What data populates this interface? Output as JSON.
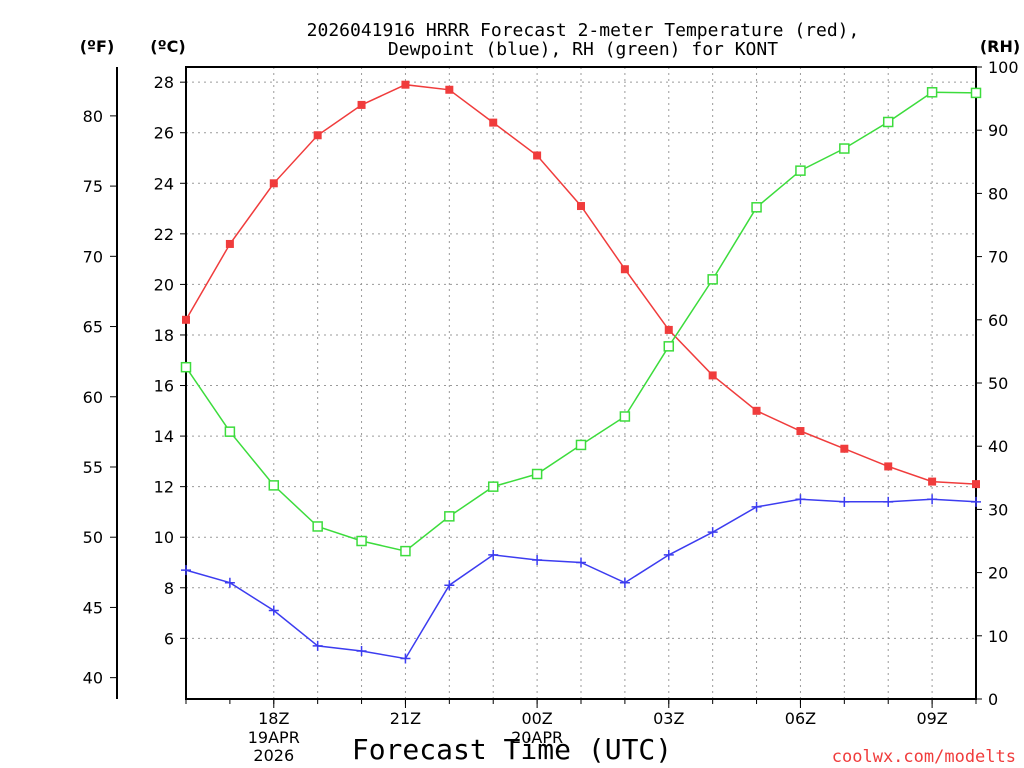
{
  "chart_data": {
    "type": "line",
    "title_line1": "2026041916 HRRR Forecast 2-meter Temperature (red),",
    "title_line2": "Dewpoint (blue), RH (green) for KONT",
    "unit_left_f": "(ºF)",
    "unit_left_c": "(ºC)",
    "unit_right": "(RH)",
    "xlabel": "Forecast Time (UTC)",
    "watermark": "coolwx.com/modelts",
    "x_hours": [
      16,
      17,
      18,
      19,
      20,
      21,
      22,
      23,
      24,
      25,
      26,
      27,
      28,
      29,
      30,
      31,
      32,
      33,
      34
    ],
    "xlim": [
      16,
      34
    ],
    "x_ticks": [
      {
        "hour": 18,
        "label": "18Z",
        "sub1": "19APR",
        "sub2": "2026"
      },
      {
        "hour": 21,
        "label": "21Z",
        "sub1": "",
        "sub2": ""
      },
      {
        "hour": 24,
        "label": "00Z",
        "sub1": "20APR",
        "sub2": ""
      },
      {
        "hour": 27,
        "label": "03Z",
        "sub1": "",
        "sub2": ""
      },
      {
        "hour": 30,
        "label": "06Z",
        "sub1": "",
        "sub2": ""
      },
      {
        "hour": 33,
        "label": "09Z",
        "sub1": "",
        "sub2": ""
      }
    ],
    "x_grid_hours": [
      18,
      19,
      20,
      21,
      22,
      23,
      24,
      25,
      26,
      27,
      28,
      29,
      30,
      31,
      32,
      33
    ],
    "ylim_c": [
      3.6,
      28.6
    ],
    "y_ticks_c": [
      6,
      8,
      10,
      12,
      14,
      16,
      18,
      20,
      22,
      24,
      26,
      28
    ],
    "y_ticks_f": [
      40,
      45,
      50,
      55,
      60,
      65,
      70,
      75,
      80
    ],
    "ylim_rh": [
      0,
      100
    ],
    "y_ticks_rh": [
      0,
      10,
      20,
      30,
      40,
      50,
      60,
      70,
      80,
      90,
      100
    ],
    "series": [
      {
        "name": "Temperature",
        "color": "#f03c3c",
        "marker": "filled-square",
        "axis": "celsius",
        "values": [
          18.6,
          21.6,
          24.0,
          25.9,
          27.1,
          27.9,
          27.7,
          26.4,
          25.1,
          23.1,
          20.6,
          18.2,
          16.4,
          15.0,
          14.2,
          13.5,
          12.8,
          12.2,
          12.1
        ]
      },
      {
        "name": "Dewpoint",
        "color": "#3c3cf0",
        "marker": "plus",
        "axis": "celsius",
        "values": [
          8.7,
          8.2,
          7.1,
          5.7,
          5.5,
          5.2,
          8.1,
          9.3,
          9.1,
          9.0,
          8.2,
          9.3,
          10.2,
          11.2,
          11.5,
          11.4,
          11.4,
          11.5,
          11.4
        ]
      },
      {
        "name": "RH",
        "color": "#3cdc3c",
        "marker": "open-square",
        "axis": "rh",
        "values": [
          52.5,
          42.3,
          33.8,
          27.3,
          25.0,
          23.4,
          28.9,
          33.6,
          35.6,
          40.2,
          44.7,
          55.8,
          66.4,
          77.8,
          83.6,
          87.1,
          91.3,
          96.0,
          95.9
        ]
      }
    ]
  }
}
